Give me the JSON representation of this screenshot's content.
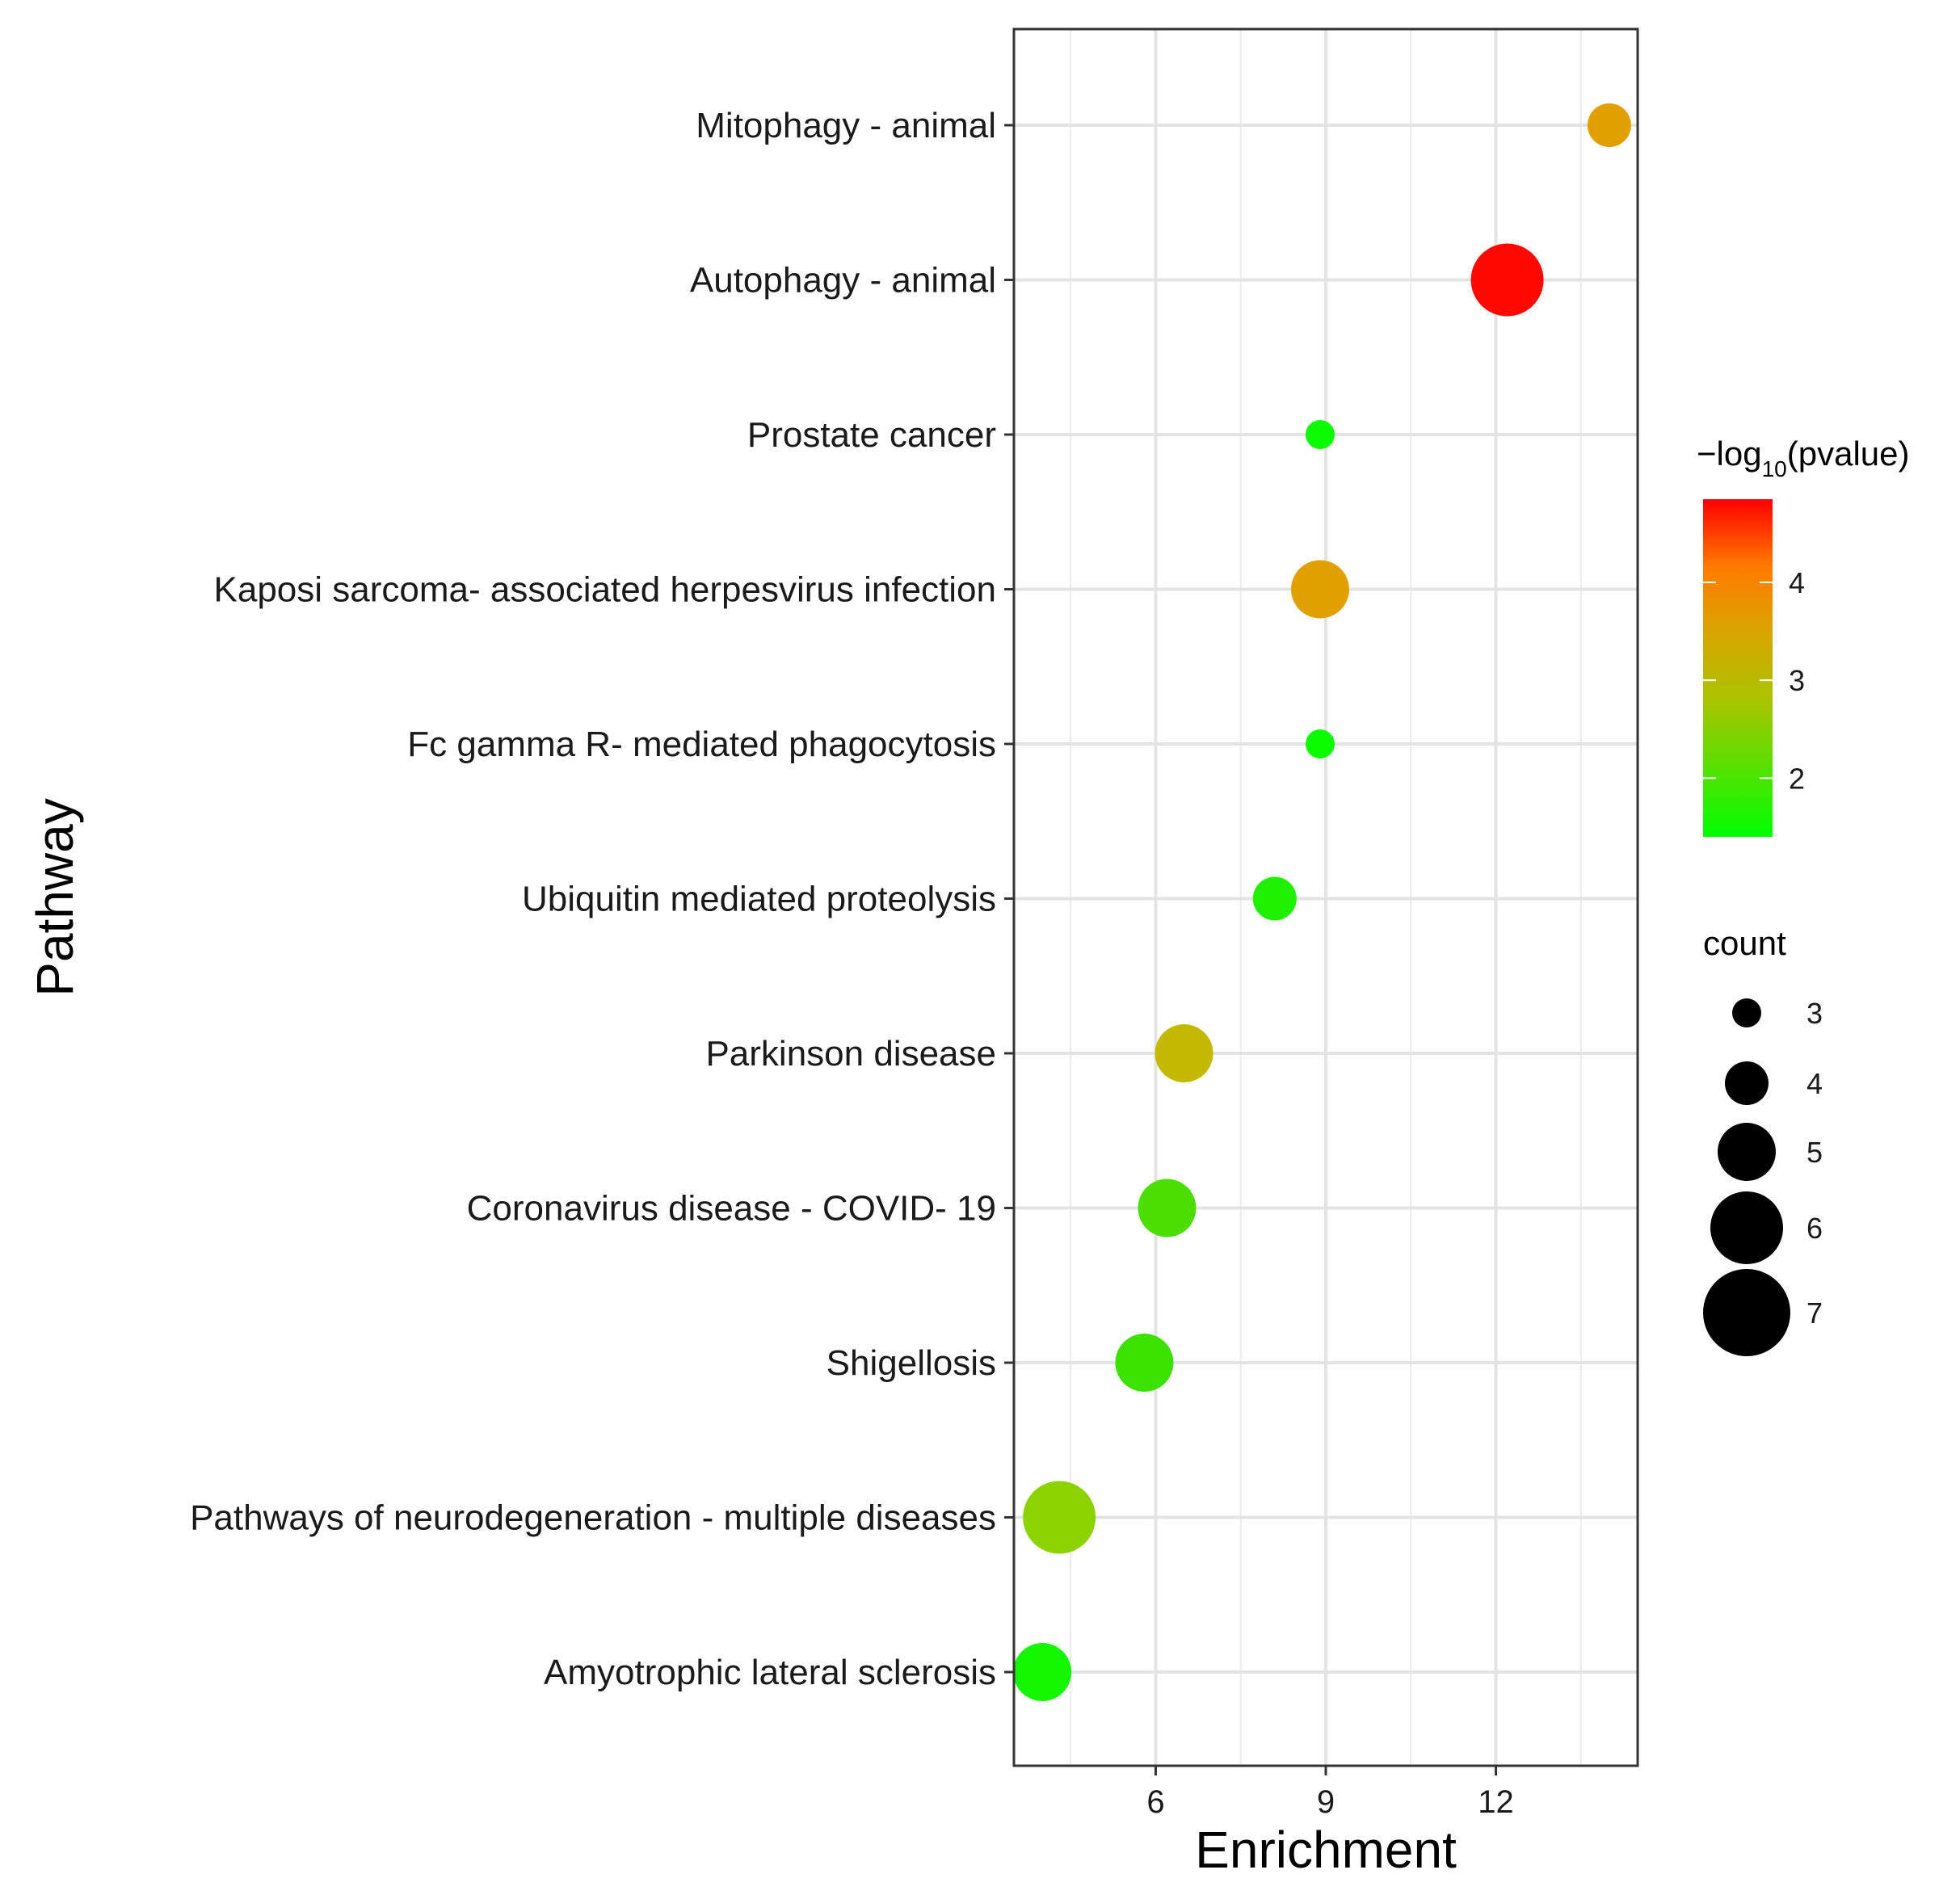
{
  "chart_data": {
    "type": "scatter",
    "title": "",
    "xlabel": "Enrichment",
    "ylabel": "Pathway",
    "xlim": [
      3.5,
      14.5
    ],
    "xticks": [
      6,
      9,
      12
    ],
    "grid": true,
    "categories": [
      "Mitophagy -  animal",
      "Autophagy -  animal",
      "Prostate cancer",
      "Kaposi sarcoma- associated herpesvirus infection",
      "Fc gamma R- mediated phagocytosis",
      "Ubiquitin mediated proteolysis",
      "Parkinson disease",
      "Coronavirus disease -  COVID- 19",
      "Shigellosis",
      "Pathways of neurodegeneration -  multiple diseases",
      "Amyotrophic lateral sclerosis"
    ],
    "points": [
      {
        "pathway": "Mitophagy -  animal",
        "enrichment": 14.0,
        "count": 4,
        "neg_log10_pvalue": 3.3
      },
      {
        "pathway": "Autophagy -  animal",
        "enrichment": 12.2,
        "count": 6,
        "neg_log10_pvalue": 4.8
      },
      {
        "pathway": "Prostate cancer",
        "enrichment": 8.9,
        "count": 3,
        "neg_log10_pvalue": 1.5
      },
      {
        "pathway": "Kaposi sarcoma- associated herpesvirus infection",
        "enrichment": 8.9,
        "count": 5,
        "neg_log10_pvalue": 3.3
      },
      {
        "pathway": "Fc gamma R- mediated phagocytosis",
        "enrichment": 8.9,
        "count": 3,
        "neg_log10_pvalue": 1.5
      },
      {
        "pathway": "Ubiquitin mediated proteolysis",
        "enrichment": 8.1,
        "count": 4,
        "neg_log10_pvalue": 1.7
      },
      {
        "pathway": "Parkinson disease",
        "enrichment": 6.5,
        "count": 5,
        "neg_log10_pvalue": 2.8
      },
      {
        "pathway": "Coronavirus disease -  COVID- 19",
        "enrichment": 6.2,
        "count": 5,
        "neg_log10_pvalue": 2.1
      },
      {
        "pathway": "Shigellosis",
        "enrichment": 5.8,
        "count": 5,
        "neg_log10_pvalue": 2.0
      },
      {
        "pathway": "Pathways of neurodegeneration -  multiple diseases",
        "enrichment": 4.3,
        "count": 6,
        "neg_log10_pvalue": 2.5
      },
      {
        "pathway": "Amyotrophic lateral sclerosis",
        "enrichment": 4.0,
        "count": 5,
        "neg_log10_pvalue": 1.6
      }
    ],
    "color_legend": {
      "title_prefix": "−log",
      "title_subscript": "10",
      "title_suffix": "(pvalue)",
      "range": [
        1.4,
        4.85
      ],
      "ticks": [
        2,
        3,
        4
      ],
      "colors": [
        "#00ff00",
        "#c8b800",
        "#ff8a00",
        "#ff0000"
      ]
    },
    "size_legend": {
      "title": "count",
      "values": [
        3,
        4,
        5,
        6,
        7
      ]
    }
  }
}
